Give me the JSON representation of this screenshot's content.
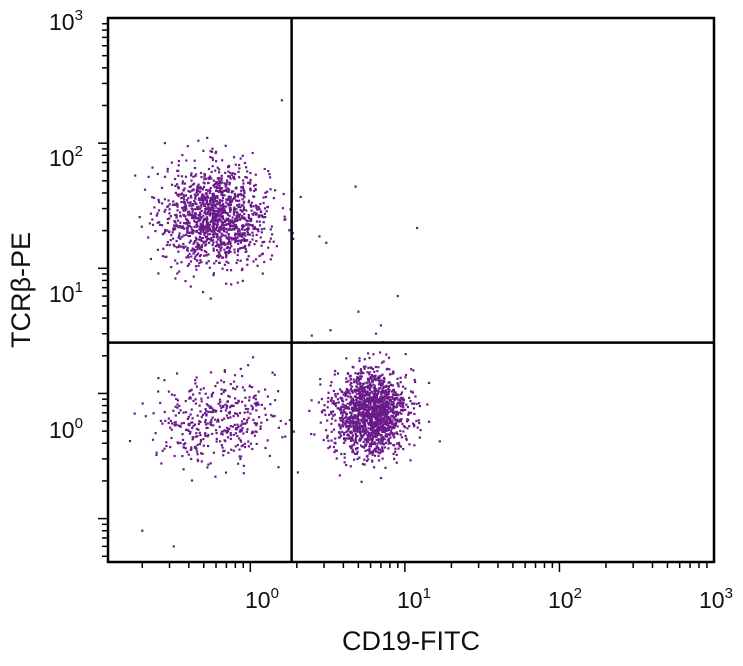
{
  "chart_data": {
    "type": "scatter",
    "title": "",
    "xlabel": "CD19-FITC",
    "ylabel": "TCRβ-PE",
    "x_scale": "log",
    "y_scale": "log",
    "xlim": [
      0.12,
      1000
    ],
    "ylim": [
      0.045,
      1000
    ],
    "x_ticks": [
      {
        "value": 1,
        "base": "10",
        "exp": "0"
      },
      {
        "value": 10,
        "base": "10",
        "exp": "1"
      },
      {
        "value": 100,
        "base": "10",
        "exp": "2"
      },
      {
        "value": 1000,
        "base": "10",
        "exp": "3"
      }
    ],
    "y_ticks": [
      {
        "value": 1,
        "base": "10",
        "exp": "0"
      },
      {
        "value": 10,
        "base": "10",
        "exp": "1"
      },
      {
        "value": 100,
        "base": "10",
        "exp": "2"
      },
      {
        "value": 1000,
        "base": "10",
        "exp": "3"
      }
    ],
    "quadrant_gate": {
      "x": 1.85,
      "y": 2.55
    },
    "point_color": "#6a1b8a",
    "grid": false,
    "legend": "none",
    "populations": [
      {
        "label": "TCRβ+ CD19-",
        "center_x": 0.6,
        "center_y": 26,
        "spread_log_x": 0.17,
        "spread_log_y": 0.2,
        "count": 1350
      },
      {
        "label": "TCRβ- CD19+",
        "center_x": 6.0,
        "center_y": 0.7,
        "spread_log_x": 0.12,
        "spread_log_y": 0.17,
        "count": 1600
      },
      {
        "label": "TCRβ- CD19-",
        "center_x": 0.6,
        "center_y": 0.6,
        "spread_log_x": 0.19,
        "spread_log_y": 0.17,
        "count": 420
      }
    ],
    "sparse_events": [
      [
        1.6,
        220
      ],
      [
        4.8,
        45
      ],
      [
        12,
        21
      ],
      [
        3.1,
        16
      ],
      [
        2.8,
        18
      ],
      [
        7,
        3.5
      ],
      [
        5,
        4.5
      ],
      [
        9,
        6
      ],
      [
        2.5,
        2.9
      ],
      [
        3.3,
        3.2
      ],
      [
        6.5,
        3.0
      ],
      [
        0.28,
        100
      ],
      [
        0.18,
        55
      ],
      [
        0.2,
        0.08
      ],
      [
        0.32,
        0.06
      ]
    ]
  }
}
